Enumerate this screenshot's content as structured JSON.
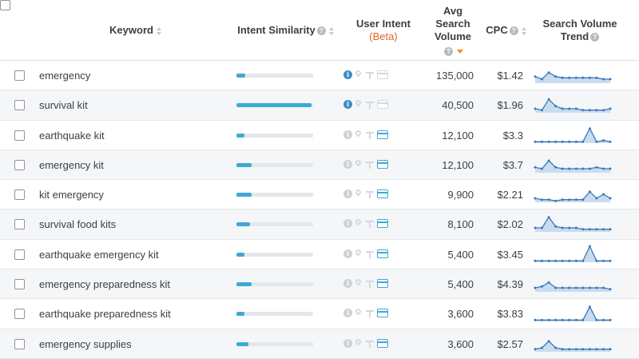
{
  "columns": {
    "keyword": "Keyword",
    "intent_similarity": "Intent Similarity",
    "user_intent": "User Intent",
    "user_intent_beta": "(Beta)",
    "avg_search_volume": "Avg Search Volume",
    "cpc": "CPC",
    "search_volume_trend": "Search Volume Trend"
  },
  "rows": [
    {
      "keyword": "emergency",
      "similarity": 0.11,
      "info_active": true,
      "card_active": false,
      "volume": "135,000",
      "cpc": "$1.42",
      "trend": [
        5,
        3,
        8,
        5,
        4,
        4,
        4,
        4,
        4,
        4,
        3,
        3
      ]
    },
    {
      "keyword": "survival kit",
      "similarity": 0.98,
      "info_active": true,
      "card_active": false,
      "volume": "40,500",
      "cpc": "$1.96",
      "trend": [
        3,
        2,
        10,
        5,
        3,
        3,
        3,
        2,
        2,
        2,
        2,
        3
      ]
    },
    {
      "keyword": "earthquake kit",
      "similarity": 0.1,
      "info_active": false,
      "card_active": true,
      "volume": "12,100",
      "cpc": "$3.3",
      "trend": [
        1,
        1,
        1,
        1,
        1,
        1,
        1,
        1,
        11,
        1,
        2,
        1
      ]
    },
    {
      "keyword": "emergency kit",
      "similarity": 0.2,
      "info_active": false,
      "card_active": true,
      "volume": "12,100",
      "cpc": "$3.7",
      "trend": [
        4,
        3,
        9,
        4,
        3,
        3,
        3,
        3,
        3,
        4,
        3,
        3
      ]
    },
    {
      "keyword": "kit emergency",
      "similarity": 0.2,
      "info_active": false,
      "card_active": true,
      "volume": "9,900",
      "cpc": "$2.21",
      "trend": [
        3,
        2,
        2,
        1,
        2,
        2,
        2,
        2,
        8,
        3,
        6,
        3
      ]
    },
    {
      "keyword": "survival food kits",
      "similarity": 0.18,
      "info_active": false,
      "card_active": true,
      "volume": "8,100",
      "cpc": "$2.02",
      "trend": [
        3,
        3,
        11,
        4,
        3,
        3,
        3,
        2,
        2,
        2,
        2,
        2
      ]
    },
    {
      "keyword": "earthquake emergency kit",
      "similarity": 0.1,
      "info_active": false,
      "card_active": true,
      "volume": "5,400",
      "cpc": "$3.45",
      "trend": [
        1,
        1,
        1,
        1,
        1,
        1,
        1,
        1,
        12,
        1,
        1,
        1
      ]
    },
    {
      "keyword": "emergency preparedness kit",
      "similarity": 0.2,
      "info_active": false,
      "card_active": true,
      "volume": "5,400",
      "cpc": "$4.39",
      "trend": [
        3,
        4,
        7,
        3,
        3,
        3,
        3,
        3,
        3,
        3,
        3,
        2
      ]
    },
    {
      "keyword": "earthquake preparedness kit",
      "similarity": 0.1,
      "info_active": false,
      "card_active": true,
      "volume": "3,600",
      "cpc": "$3.83",
      "trend": [
        1,
        1,
        1,
        1,
        1,
        1,
        1,
        1,
        11,
        1,
        1,
        1
      ]
    },
    {
      "keyword": "emergency supplies",
      "similarity": 0.16,
      "info_active": false,
      "card_active": true,
      "volume": "3,600",
      "cpc": "$2.57",
      "trend": [
        2,
        3,
        8,
        3,
        2,
        2,
        2,
        2,
        2,
        2,
        2,
        2
      ]
    }
  ],
  "colors": {
    "accent": "#3ea9d4",
    "trend_line": "#3b78b8",
    "trend_fill": "#c9dcef",
    "sort_active": "#f28c28",
    "beta": "#e0632c"
  }
}
